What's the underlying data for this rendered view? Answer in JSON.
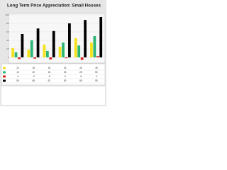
{
  "chart_data": {
    "type": "bar",
    "title": "Long Term Price Appreciation: Small Houses",
    "categories": [
      null,
      null,
      null,
      null,
      null,
      null
    ],
    "series": [
      {
        "color": "#f5e21b",
        "values": [
          22,
          18,
          30,
          25,
          45,
          35
        ]
      },
      {
        "color": "#2bb673",
        "values": [
          12,
          40,
          15,
          35,
          28,
          50
        ]
      },
      {
        "color": "#d7261e",
        "values": [
          -4,
          -3,
          -5,
          -2,
          -6,
          3
        ]
      },
      {
        "color": "#000000",
        "values": [
          55,
          68,
          62,
          80,
          88,
          95
        ]
      }
    ],
    "ylim": [
      -10,
      100
    ],
    "yticks": [
      0,
      20,
      40,
      60,
      80,
      100
    ],
    "grid": true
  }
}
